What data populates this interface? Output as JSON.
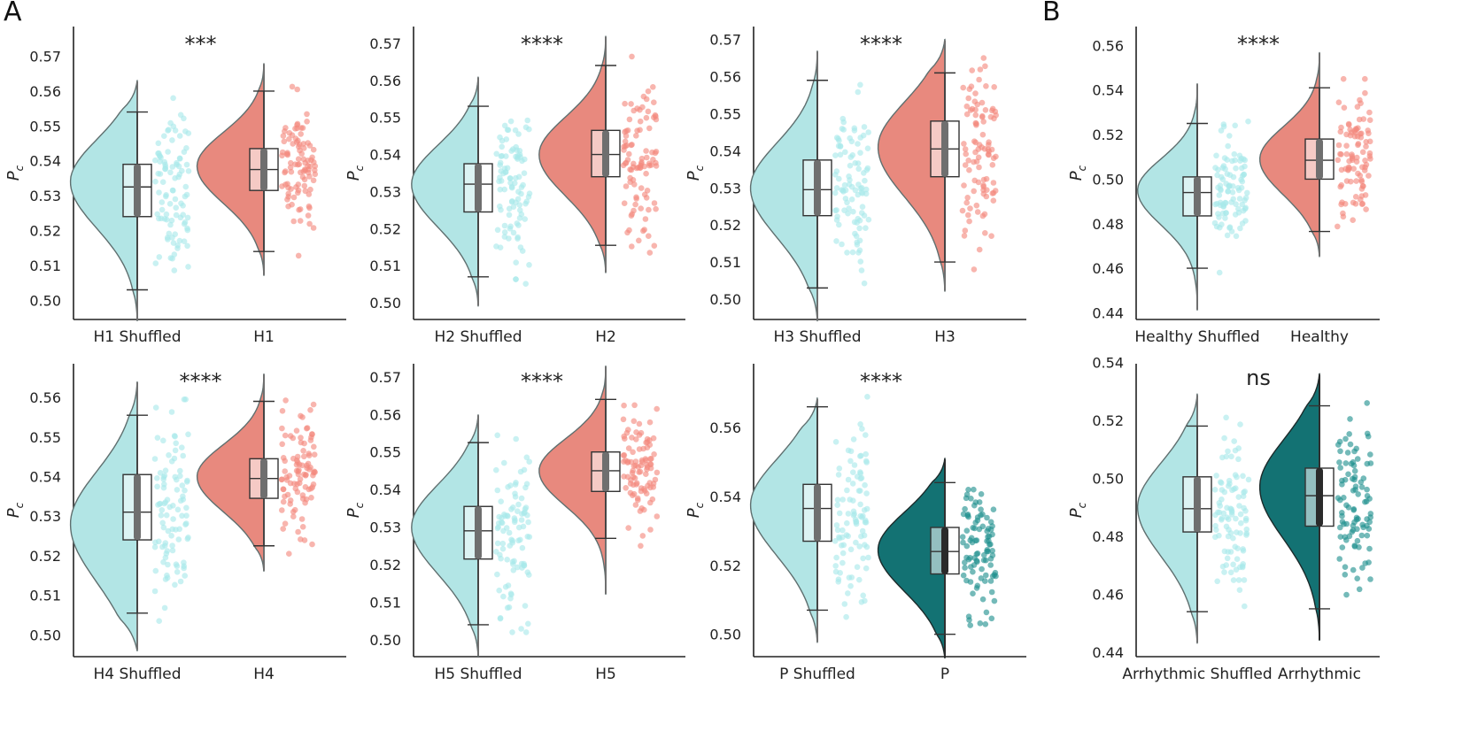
{
  "figure": {
    "panel_labels": [
      "A",
      "B"
    ],
    "colors": {
      "shuffled": "#b2e5e5",
      "shuffled_dots": "#a8e8ea",
      "healthy": "#e8897e",
      "healthy_dots": "#f4877c",
      "patient": "#137273",
      "patient_dots": "#1f8f8e",
      "axis": "#222222",
      "box_fill": "#ffffff",
      "inner_box": "#6f6f6f",
      "inner_box_dark": "#2a2a2a"
    }
  },
  "chart_data": [
    {
      "id": "H1",
      "type": "raincloud",
      "ylabel": "Pc",
      "yticks": [
        "0.50",
        "0.51",
        "0.52",
        "0.53",
        "0.54",
        "0.55",
        "0.56",
        "0.57"
      ],
      "ylim": [
        0.4945,
        0.5785
      ],
      "categories": [
        "H1 Shuffled",
        "H1"
      ],
      "significance": "***",
      "groups": [
        {
          "name": "H1 Shuffled",
          "color": "shuffled",
          "min": 0.494,
          "max": 0.563,
          "median": 0.5325,
          "q1": 0.524,
          "q3": 0.539,
          "whisker_low": 0.503,
          "whisker_high": 0.554,
          "mode": 0.534
        },
        {
          "name": "H1",
          "color": "healthy",
          "min": 0.507,
          "max": 0.568,
          "median": 0.5375,
          "q1": 0.5315,
          "q3": 0.5435,
          "whisker_low": 0.514,
          "whisker_high": 0.56,
          "mode": 0.5385
        }
      ]
    },
    {
      "id": "H2",
      "type": "raincloud",
      "ylabel": "Pc",
      "yticks": [
        "0.50",
        "0.51",
        "0.52",
        "0.53",
        "0.54",
        "0.55",
        "0.56",
        "0.57"
      ],
      "ylim": [
        0.4955,
        0.5745
      ],
      "categories": [
        "H2 Shuffled",
        "H2"
      ],
      "significance": "****",
      "groups": [
        {
          "name": "H2 Shuffled",
          "color": "shuffled",
          "min": 0.499,
          "max": 0.561,
          "median": 0.532,
          "q1": 0.5245,
          "q3": 0.5375,
          "whisker_low": 0.507,
          "whisker_high": 0.553,
          "mode": 0.532
        },
        {
          "name": "H2",
          "color": "healthy",
          "min": 0.508,
          "max": 0.572,
          "median": 0.54,
          "q1": 0.534,
          "q3": 0.5465,
          "whisker_low": 0.5155,
          "whisker_high": 0.564,
          "mode": 0.54
        }
      ]
    },
    {
      "id": "H3",
      "type": "raincloud",
      "ylabel": "Pc",
      "yticks": [
        "0.50",
        "0.51",
        "0.52",
        "0.53",
        "0.54",
        "0.55",
        "0.56",
        "0.57"
      ],
      "ylim": [
        0.4945,
        0.5735
      ],
      "categories": [
        "H3 Shuffled",
        "H3"
      ],
      "significance": "****",
      "groups": [
        {
          "name": "H3 Shuffled",
          "color": "shuffled",
          "min": 0.494,
          "max": 0.567,
          "median": 0.5295,
          "q1": 0.5225,
          "q3": 0.5375,
          "whisker_low": 0.503,
          "whisker_high": 0.559,
          "mode": 0.53
        },
        {
          "name": "H3",
          "color": "healthy",
          "min": 0.502,
          "max": 0.57,
          "median": 0.5405,
          "q1": 0.533,
          "q3": 0.548,
          "whisker_low": 0.51,
          "whisker_high": 0.561,
          "mode": 0.541
        }
      ]
    },
    {
      "id": "Healthy",
      "type": "raincloud",
      "ylabel": "Pc",
      "yticks": [
        "0.44",
        "0.46",
        "0.48",
        "0.50",
        "0.52",
        "0.54",
        "0.56"
      ],
      "ylim": [
        0.437,
        0.5685
      ],
      "categories": [
        "Healthy Shuffled",
        "Healthy"
      ],
      "significance": "****",
      "groups": [
        {
          "name": "Healthy Shuffled",
          "color": "shuffled",
          "min": 0.441,
          "max": 0.543,
          "median": 0.494,
          "q1": 0.4835,
          "q3": 0.501,
          "whisker_low": 0.46,
          "whisker_high": 0.525,
          "mode": 0.495
        },
        {
          "name": "Healthy",
          "color": "healthy",
          "min": 0.465,
          "max": 0.557,
          "median": 0.5085,
          "q1": 0.5,
          "q3": 0.518,
          "whisker_low": 0.4765,
          "whisker_high": 0.541,
          "mode": 0.509
        }
      ]
    },
    {
      "id": "H4",
      "type": "raincloud",
      "ylabel": "Pc",
      "yticks": [
        "0.50",
        "0.51",
        "0.52",
        "0.53",
        "0.54",
        "0.55",
        "0.56"
      ],
      "ylim": [
        0.4945,
        0.5685
      ],
      "categories": [
        "H4 Shuffled",
        "H4"
      ],
      "significance": "****",
      "groups": [
        {
          "name": "H4 Shuffled",
          "color": "shuffled",
          "min": 0.496,
          "max": 0.564,
          "median": 0.531,
          "q1": 0.524,
          "q3": 0.5405,
          "whisker_low": 0.5055,
          "whisker_high": 0.5555,
          "mode": 0.528
        },
        {
          "name": "H4",
          "color": "healthy",
          "min": 0.516,
          "max": 0.566,
          "median": 0.5395,
          "q1": 0.5345,
          "q3": 0.5445,
          "whisker_low": 0.5225,
          "whisker_high": 0.559,
          "mode": 0.54
        }
      ]
    },
    {
      "id": "H5",
      "type": "raincloud",
      "ylabel": "Pc",
      "yticks": [
        "0.50",
        "0.51",
        "0.52",
        "0.53",
        "0.54",
        "0.55",
        "0.56",
        "0.57"
      ],
      "ylim": [
        0.4955,
        0.5735
      ],
      "categories": [
        "H5 Shuffled",
        "H5"
      ],
      "significance": "****",
      "groups": [
        {
          "name": "H5 Shuffled",
          "color": "shuffled",
          "min": 0.4955,
          "max": 0.56,
          "median": 0.529,
          "q1": 0.5215,
          "q3": 0.5355,
          "whisker_low": 0.504,
          "whisker_high": 0.5525,
          "mode": 0.53
        },
        {
          "name": "H5",
          "color": "healthy",
          "min": 0.512,
          "max": 0.573,
          "median": 0.545,
          "q1": 0.5395,
          "q3": 0.55,
          "whisker_low": 0.527,
          "whisker_high": 0.564,
          "mode": 0.545
        }
      ]
    },
    {
      "id": "P",
      "type": "raincloud",
      "ylabel": "Pc",
      "yticks": [
        "0.50",
        "0.52",
        "0.54",
        "0.56"
      ],
      "ylim": [
        0.4935,
        0.5785
      ],
      "categories": [
        "P Shuffled",
        "P"
      ],
      "significance": "****",
      "groups": [
        {
          "name": "P Shuffled",
          "color": "shuffled",
          "min": 0.4975,
          "max": 0.5685,
          "median": 0.5365,
          "q1": 0.527,
          "q3": 0.5435,
          "whisker_low": 0.507,
          "whisker_high": 0.566,
          "mode": 0.5375
        },
        {
          "name": "P",
          "color": "patient",
          "min": 0.493,
          "max": 0.551,
          "median": 0.524,
          "q1": 0.5175,
          "q3": 0.531,
          "whisker_low": 0.5,
          "whisker_high": 0.544,
          "mode": 0.5245
        }
      ]
    },
    {
      "id": "Arrhythmic",
      "type": "raincloud",
      "ylabel": "Pc",
      "yticks": [
        "0.44",
        "0.46",
        "0.48",
        "0.50",
        "0.52",
        "0.54"
      ],
      "ylim": [
        0.4385,
        0.5395
      ],
      "categories": [
        "Arrhythmic Shuffled",
        "Arrhythmic"
      ],
      "significance": "ns",
      "groups": [
        {
          "name": "Arrhythmic Shuffled",
          "color": "shuffled",
          "min": 0.443,
          "max": 0.529,
          "median": 0.4895,
          "q1": 0.4815,
          "q3": 0.5005,
          "whisker_low": 0.454,
          "whisker_high": 0.518,
          "mode": 0.49
        },
        {
          "name": "Arrhythmic",
          "color": "patient",
          "min": 0.444,
          "max": 0.536,
          "median": 0.494,
          "q1": 0.4835,
          "q3": 0.5035,
          "whisker_low": 0.455,
          "whisker_high": 0.525,
          "mode": 0.497
        }
      ]
    }
  ]
}
